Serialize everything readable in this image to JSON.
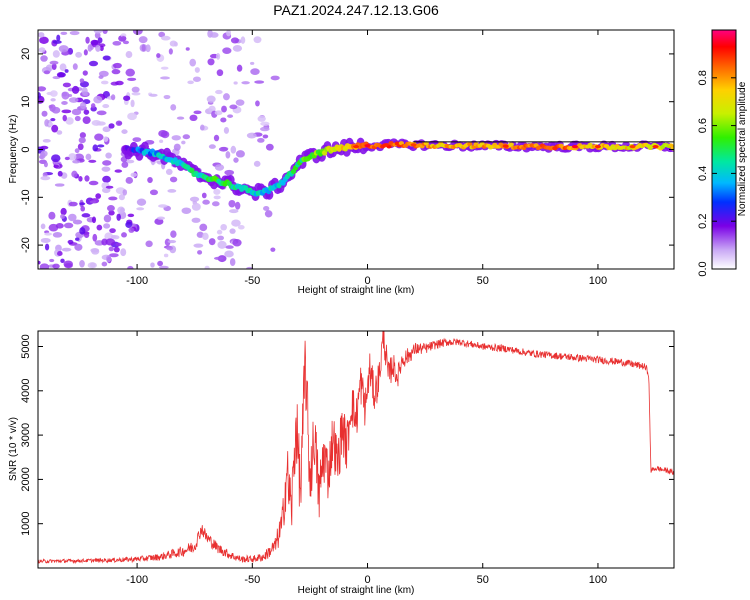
{
  "title": "PAZ1.2024.247.12.13.G06",
  "chart_data": [
    {
      "type": "heatmap",
      "xlabel": "Height of straight line (km)",
      "ylabel": "Frequency (Hz)",
      "xlim": [
        -143,
        133
      ],
      "ylim": [
        -25,
        25
      ],
      "xticks": [
        "-100",
        "-50",
        "0",
        "50",
        "100"
      ],
      "xtick_values": [
        -100,
        -50,
        0,
        50,
        100
      ],
      "yticks": [
        "-20",
        "-10",
        "0",
        "10",
        "20"
      ],
      "ytick_values": [
        -20,
        -10,
        0,
        10,
        20
      ],
      "colorbar": {
        "label": "Normalized spectral amplitude",
        "ticks": [
          "0.0",
          "0.2",
          "0.4",
          "0.6",
          "0.8"
        ],
        "tick_values": [
          0,
          0.2,
          0.4,
          0.6,
          0.8
        ],
        "range": [
          0,
          1
        ]
      },
      "ridge": {
        "x": [
          -105,
          -95,
          -85,
          -75,
          -65,
          -55,
          -50,
          -45,
          -40,
          -35,
          -30,
          -25,
          -20,
          -15,
          -10,
          -5,
          0,
          10,
          20,
          40,
          60,
          80,
          100,
          120,
          133
        ],
        "y": [
          0,
          -0.5,
          -2,
          -5,
          -6.5,
          -8,
          -9,
          -9,
          -8,
          -6,
          -3,
          -1.5,
          -0.5,
          0,
          0.3,
          0.6,
          0.8,
          1,
          1,
          0.8,
          0.7,
          0.6,
          0.6,
          0.6,
          0.6
        ],
        "amplitude": [
          0.2,
          0.35,
          0.4,
          0.45,
          0.5,
          0.45,
          0.4,
          0.4,
          0.4,
          0.45,
          0.5,
          0.55,
          0.6,
          0.7,
          0.75,
          0.8,
          0.85,
          0.85,
          0.8,
          0.75,
          0.8,
          0.85,
          0.75,
          0.7,
          0.7
        ]
      },
      "noise_region_x": [
        -143,
        -40
      ]
    },
    {
      "type": "line",
      "xlabel": "Height of straight line (km)",
      "ylabel": "SNR (10 * v/v)",
      "xlim": [
        -143,
        133
      ],
      "ylim": [
        0,
        5350
      ],
      "xticks": [
        "-100",
        "-50",
        "0",
        "50",
        "100"
      ],
      "xtick_values": [
        -100,
        -50,
        0,
        50,
        100
      ],
      "yticks": [
        "1000",
        "2000",
        "3000",
        "4000",
        "5000"
      ],
      "ytick_values": [
        1000,
        2000,
        3000,
        4000,
        5000
      ],
      "series": [
        {
          "color": "#e83030",
          "x": [
            -143,
            -130,
            -120,
            -110,
            -100,
            -90,
            -80,
            -75,
            -72,
            -70,
            -65,
            -60,
            -55,
            -50,
            -45,
            -40,
            -37,
            -35,
            -33,
            -31,
            -29,
            -27,
            -25,
            -23,
            -21,
            -19,
            -17,
            -15,
            -13,
            -11,
            -9,
            -7,
            -5,
            -3,
            -1,
            1,
            3,
            5,
            7,
            9,
            11,
            13,
            15,
            18,
            21,
            25,
            30,
            35,
            40,
            45,
            50,
            60,
            70,
            80,
            90,
            100,
            110,
            115,
            120,
            121,
            122,
            123,
            125,
            130,
            133
          ],
          "y": [
            150,
            160,
            170,
            180,
            200,
            250,
            380,
            500,
            900,
            700,
            450,
            300,
            200,
            200,
            250,
            500,
            1000,
            2200,
            1300,
            3300,
            1700,
            4700,
            2000,
            3000,
            1600,
            2600,
            2100,
            3000,
            2300,
            3200,
            2700,
            3800,
            3300,
            4200,
            3600,
            4500,
            3900,
            4300,
            5300,
            4300,
            4600,
            4300,
            4700,
            4800,
            4950,
            4950,
            5050,
            5100,
            5100,
            5050,
            5000,
            4950,
            4850,
            4800,
            4750,
            4700,
            4650,
            4600,
            4550,
            4500,
            4400,
            2200,
            2250,
            2200,
            2150
          ],
          "jitter": [
            40,
            40,
            40,
            50,
            60,
            80,
            120,
            150,
            150,
            150,
            120,
            100,
            80,
            80,
            100,
            200,
            400,
            700,
            700,
            800,
            800,
            900,
            800,
            700,
            700,
            700,
            600,
            600,
            600,
            600,
            550,
            550,
            500,
            500,
            450,
            400,
            400,
            400,
            400,
            350,
            300,
            250,
            220,
            180,
            150,
            120,
            100,
            90,
            80,
            80,
            80,
            80,
            80,
            80,
            80,
            80,
            80,
            80,
            80,
            80,
            80,
            60,
            60,
            60,
            60
          ]
        }
      ]
    }
  ]
}
